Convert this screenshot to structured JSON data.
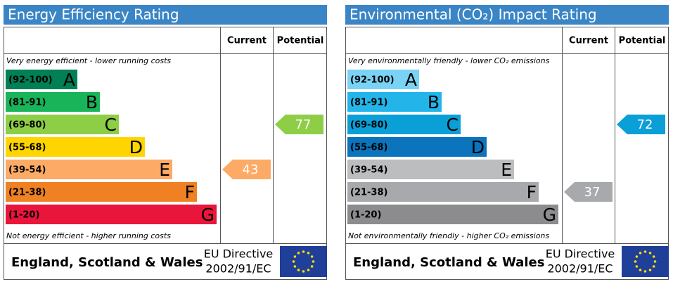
{
  "panels": [
    {
      "title": "Energy Efficiency Rating",
      "col_current": "Current",
      "col_potential": "Potential",
      "top_note": "Very energy efficient - lower running costs",
      "bottom_note": "Not energy efficient - higher running costs",
      "bands": [
        {
          "range": "(92-100)",
          "letter": "A",
          "color": "#008054"
        },
        {
          "range": "(81-91)",
          "letter": "B",
          "color": "#19b459"
        },
        {
          "range": "(69-80)",
          "letter": "C",
          "color": "#8dce46"
        },
        {
          "range": "(55-68)",
          "letter": "D",
          "color": "#ffd500"
        },
        {
          "range": "(39-54)",
          "letter": "E",
          "color": "#fcaa65"
        },
        {
          "range": "(21-38)",
          "letter": "F",
          "color": "#ef8023"
        },
        {
          "range": "(1-20)",
          "letter": "G",
          "color": "#e9153b"
        }
      ],
      "current": 43,
      "potential": 77,
      "footer": {
        "region": "England, Scotland & Wales",
        "directive_line1": "EU Directive",
        "directive_line2": "2002/91/EC"
      }
    },
    {
      "title": "Environmental (CO₂) Impact Rating",
      "col_current": "Current",
      "col_potential": "Potential",
      "top_note": "Very environmentally friendly - lower CO₂ emissions",
      "bottom_note": "Not environmentally friendly - higher CO₂ emissions",
      "bands": [
        {
          "range": "(92-100)",
          "letter": "A",
          "color": "#7ad3f5"
        },
        {
          "range": "(81-91)",
          "letter": "B",
          "color": "#23b5ea"
        },
        {
          "range": "(69-80)",
          "letter": "C",
          "color": "#0b9fd8"
        },
        {
          "range": "(55-68)",
          "letter": "D",
          "color": "#0b74bd"
        },
        {
          "range": "(39-54)",
          "letter": "E",
          "color": "#bbbdbf"
        },
        {
          "range": "(21-38)",
          "letter": "F",
          "color": "#a7a9ac"
        },
        {
          "range": "(1-20)",
          "letter": "G",
          "color": "#8c8c8e"
        }
      ],
      "current": 37,
      "potential": 72,
      "footer": {
        "region": "England, Scotland & Wales",
        "directive_line1": "EU Directive",
        "directive_line2": "2002/91/EC"
      }
    }
  ]
}
